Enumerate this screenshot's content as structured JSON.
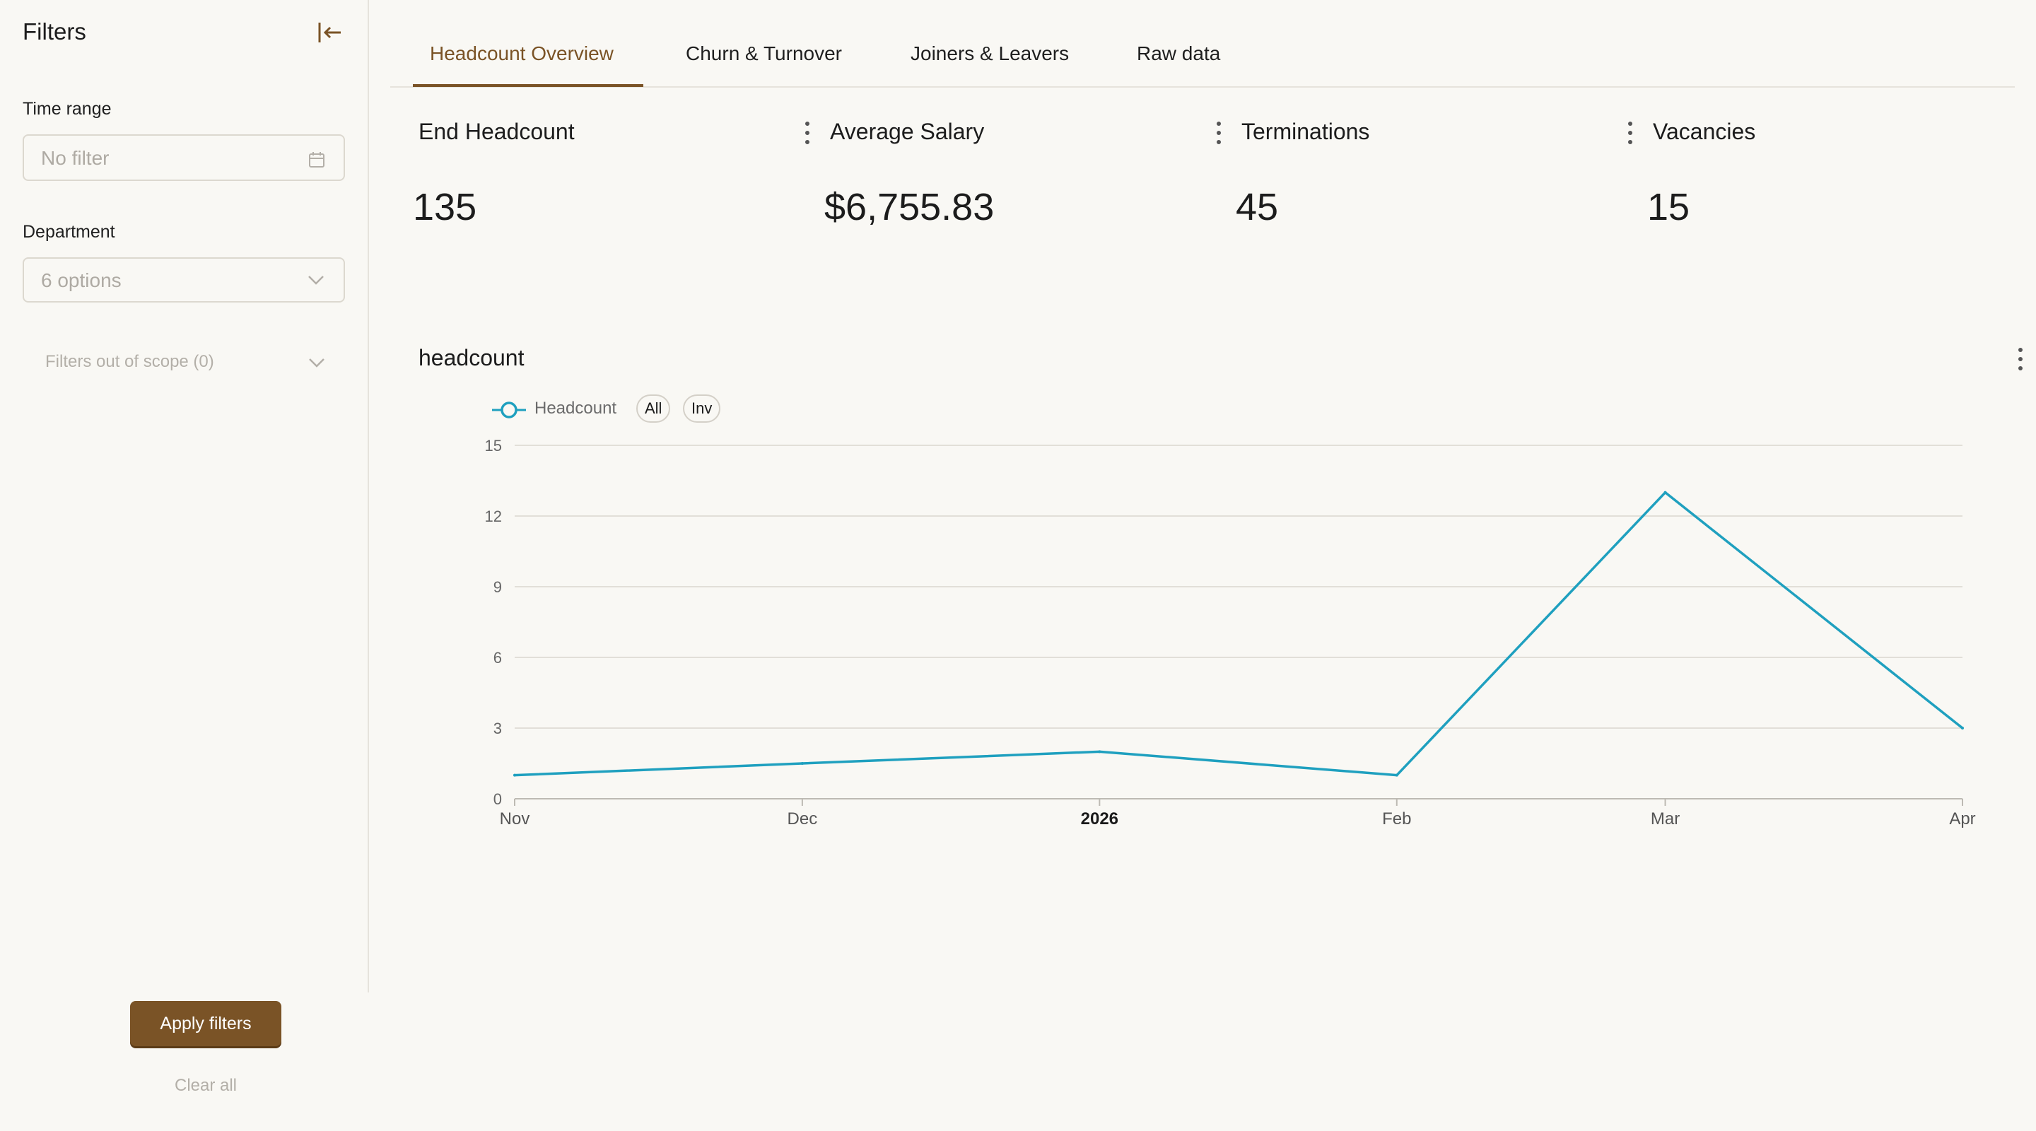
{
  "sidebar": {
    "title": "Filters",
    "time_range": {
      "label": "Time range",
      "placeholder": "No filter"
    },
    "department": {
      "label": "Department",
      "placeholder": "6 options"
    },
    "scope_label": "Filters out of scope (0)",
    "apply_label": "Apply filters",
    "clear_label": "Clear all"
  },
  "tabs": [
    {
      "label": "Headcount Overview",
      "active": true
    },
    {
      "label": "Churn & Turnover",
      "active": false
    },
    {
      "label": "Joiners & Leavers",
      "active": false
    },
    {
      "label": "Raw data",
      "active": false
    }
  ],
  "kpis": [
    {
      "title": "End Headcount",
      "value": "135"
    },
    {
      "title": "Average Salary",
      "value": "$6,755.83"
    },
    {
      "title": "Terminations",
      "value": "45"
    },
    {
      "title": "Vacancies",
      "value": "15"
    }
  ],
  "chart": {
    "title": "headcount",
    "legend_name": "Headcount",
    "pill_all": "All",
    "pill_inv": "Inv"
  },
  "chart_data": {
    "type": "line",
    "title": "headcount",
    "x": [
      "2025-11-01",
      "2025-12-01",
      "2026-01-01",
      "2026-02-01",
      "2026-03-01",
      "2026-04-01"
    ],
    "x_tick_labels": [
      "Nov",
      "Dec",
      "2026",
      "Feb",
      "Mar",
      "Apr"
    ],
    "x_tick_bold": [
      false,
      false,
      true,
      false,
      false,
      false
    ],
    "series": [
      {
        "name": "Headcount",
        "values": [
          1,
          1.5,
          2,
          1,
          13,
          3
        ],
        "color": "#1fa0bf"
      }
    ],
    "ylim": [
      0,
      15
    ],
    "yticks": [
      0,
      3,
      6,
      9,
      12,
      15
    ],
    "grid": true,
    "legend_position": "top-left"
  },
  "colors": {
    "accent": "#7a5326",
    "series": "#1fa0bf",
    "background": "#f9f8f4"
  },
  "icons": {
    "collapse": "collapse-left-icon",
    "calendar": "calendar-icon",
    "chevron": "chevron-down-icon",
    "kebab": "kebab-menu-icon"
  }
}
